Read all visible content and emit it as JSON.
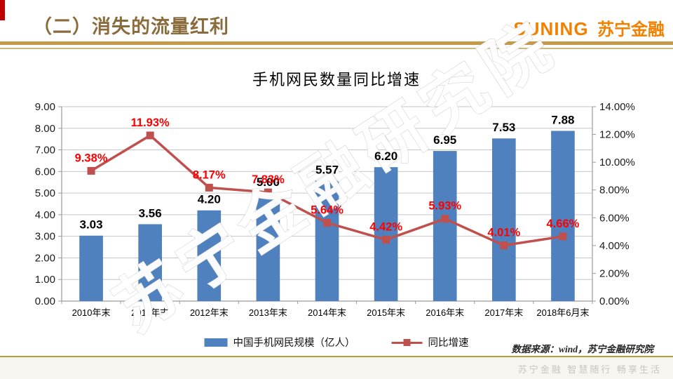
{
  "header": {
    "title": "（二）消失的流量红利",
    "logo_en": "SUNING",
    "logo_cn": "苏宁金融"
  },
  "watermark": {
    "diagonal": "苏宁金融研究院",
    "footer_slogan": "苏宁金融 智慧随行 畅享生活"
  },
  "source_note": "数据来源：wind，苏宁金融研究院",
  "colors": {
    "bar": "#4E81BD",
    "line": "#C0504D",
    "line_label": "#FF0000",
    "title_gold": "#8A6C3C",
    "logo_orange": "#F18101",
    "accent_red": "#C00000",
    "grid": "#C6C6C6",
    "axis": "#9A9A9A"
  },
  "chart_data": {
    "type": "bar",
    "combo": "bar+line",
    "title": "手机网民数量同比增速",
    "categories": [
      "2010年末",
      "2011年末",
      "2012年末",
      "2013年末",
      "2014年末",
      "2015年末",
      "2016年末",
      "2017年末",
      "2018年6月末"
    ],
    "series": [
      {
        "name": "中国手机网民规模（亿人）",
        "type": "bar",
        "axis": "left",
        "color": "#4E81BD",
        "values": [
          3.03,
          3.56,
          4.2,
          5.0,
          5.57,
          6.2,
          6.95,
          7.53,
          7.88
        ],
        "labels": [
          "3.03",
          "3.56",
          "4.20",
          "5.00",
          "5.57",
          "6.20",
          "6.95",
          "7.53",
          "7.88"
        ]
      },
      {
        "name": "同比增速",
        "type": "line",
        "axis": "right",
        "color": "#C0504D",
        "label_color": "#FF0000",
        "values": [
          9.38,
          11.93,
          8.17,
          7.83,
          5.64,
          4.42,
          5.93,
          4.01,
          4.66
        ],
        "labels": [
          "9.38%",
          "11.93%",
          "8.17%",
          "7.83%",
          "5.64%",
          "4.42%",
          "5.93%",
          "4.01%",
          "4.66%"
        ]
      }
    ],
    "left_axis": {
      "min": 0,
      "max": 9,
      "step": 1,
      "tick_labels": [
        "0.00",
        "1.00",
        "2.00",
        "3.00",
        "4.00",
        "5.00",
        "6.00",
        "7.00",
        "8.00",
        "9.00"
      ]
    },
    "right_axis": {
      "min": 0,
      "max": 14,
      "step": 2,
      "tick_labels": [
        "0.00%",
        "2.00%",
        "4.00%",
        "6.00%",
        "8.00%",
        "10.00%",
        "12.00%",
        "14.00%"
      ]
    },
    "grid": true,
    "legend_position": "bottom"
  }
}
